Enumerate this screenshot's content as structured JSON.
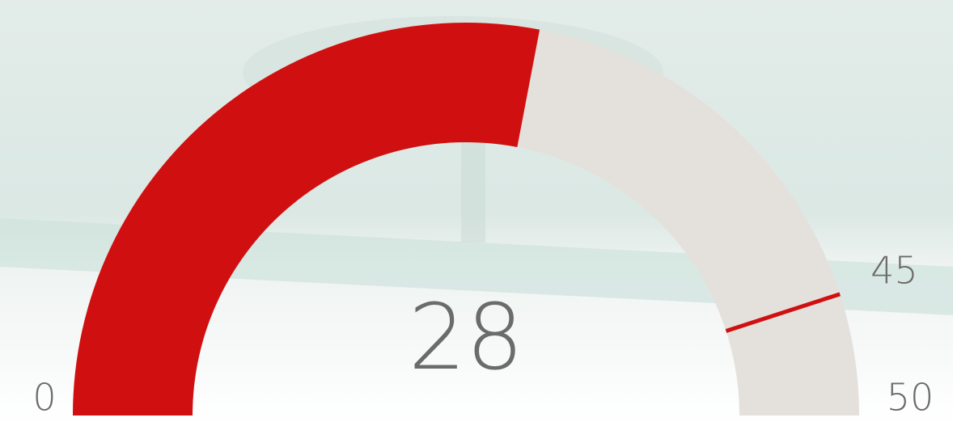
{
  "chart_data": {
    "type": "gauge",
    "value": 28,
    "min": 0,
    "max": 50,
    "target": 45,
    "color": "#d01010",
    "track_color": "#e4e1dd",
    "target_color": "#d01010"
  }
}
